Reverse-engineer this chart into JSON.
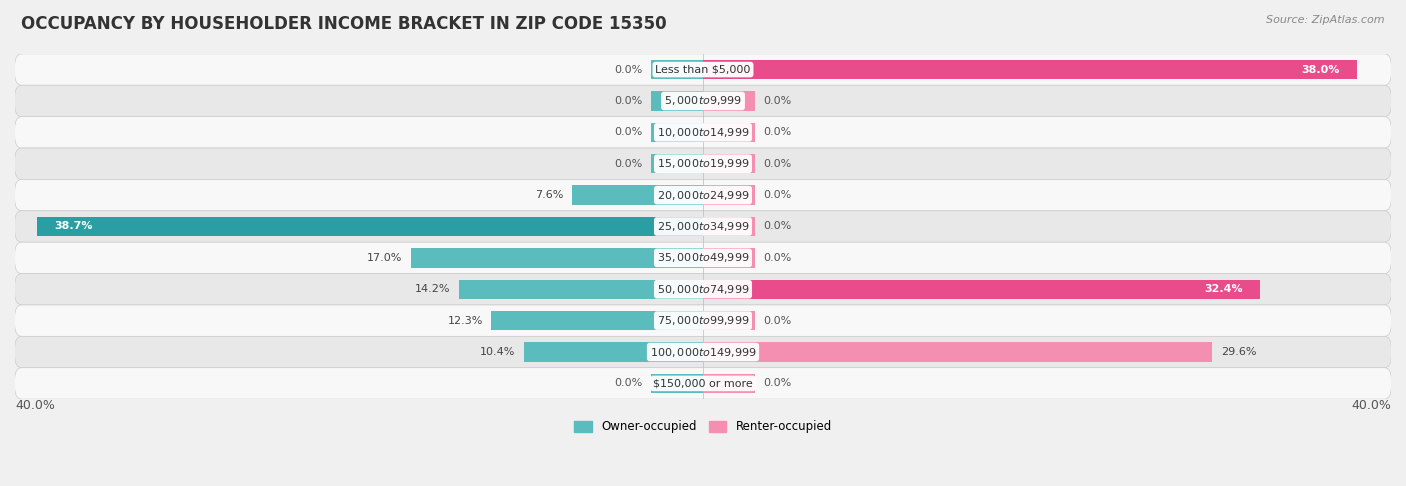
{
  "title": "OCCUPANCY BY HOUSEHOLDER INCOME BRACKET IN ZIP CODE 15350",
  "source": "Source: ZipAtlas.com",
  "categories": [
    "Less than $5,000",
    "$5,000 to $9,999",
    "$10,000 to $14,999",
    "$15,000 to $19,999",
    "$20,000 to $24,999",
    "$25,000 to $34,999",
    "$35,000 to $49,999",
    "$50,000 to $74,999",
    "$75,000 to $99,999",
    "$100,000 to $149,999",
    "$150,000 or more"
  ],
  "owner_occupied": [
    0.0,
    0.0,
    0.0,
    0.0,
    7.6,
    38.7,
    17.0,
    14.2,
    12.3,
    10.4,
    0.0
  ],
  "renter_occupied": [
    38.0,
    0.0,
    0.0,
    0.0,
    0.0,
    0.0,
    0.0,
    32.4,
    0.0,
    29.6,
    0.0
  ],
  "owner_color": "#5bbcbe",
  "owner_color_dark": "#2a9fa3",
  "renter_color": "#f48fb1",
  "renter_color_dark": "#e84c8b",
  "owner_label": "Owner-occupied",
  "renter_label": "Renter-occupied",
  "stub_size": 3.0,
  "xlim": 40.0,
  "bar_height": 0.62,
  "bg_color": "#f0f0f0",
  "row_color_light": "#f8f8f8",
  "row_color_dark": "#e8e8e8",
  "title_fontsize": 12,
  "cat_fontsize": 8,
  "val_fontsize": 8,
  "axis_label_fontsize": 9,
  "source_fontsize": 8
}
